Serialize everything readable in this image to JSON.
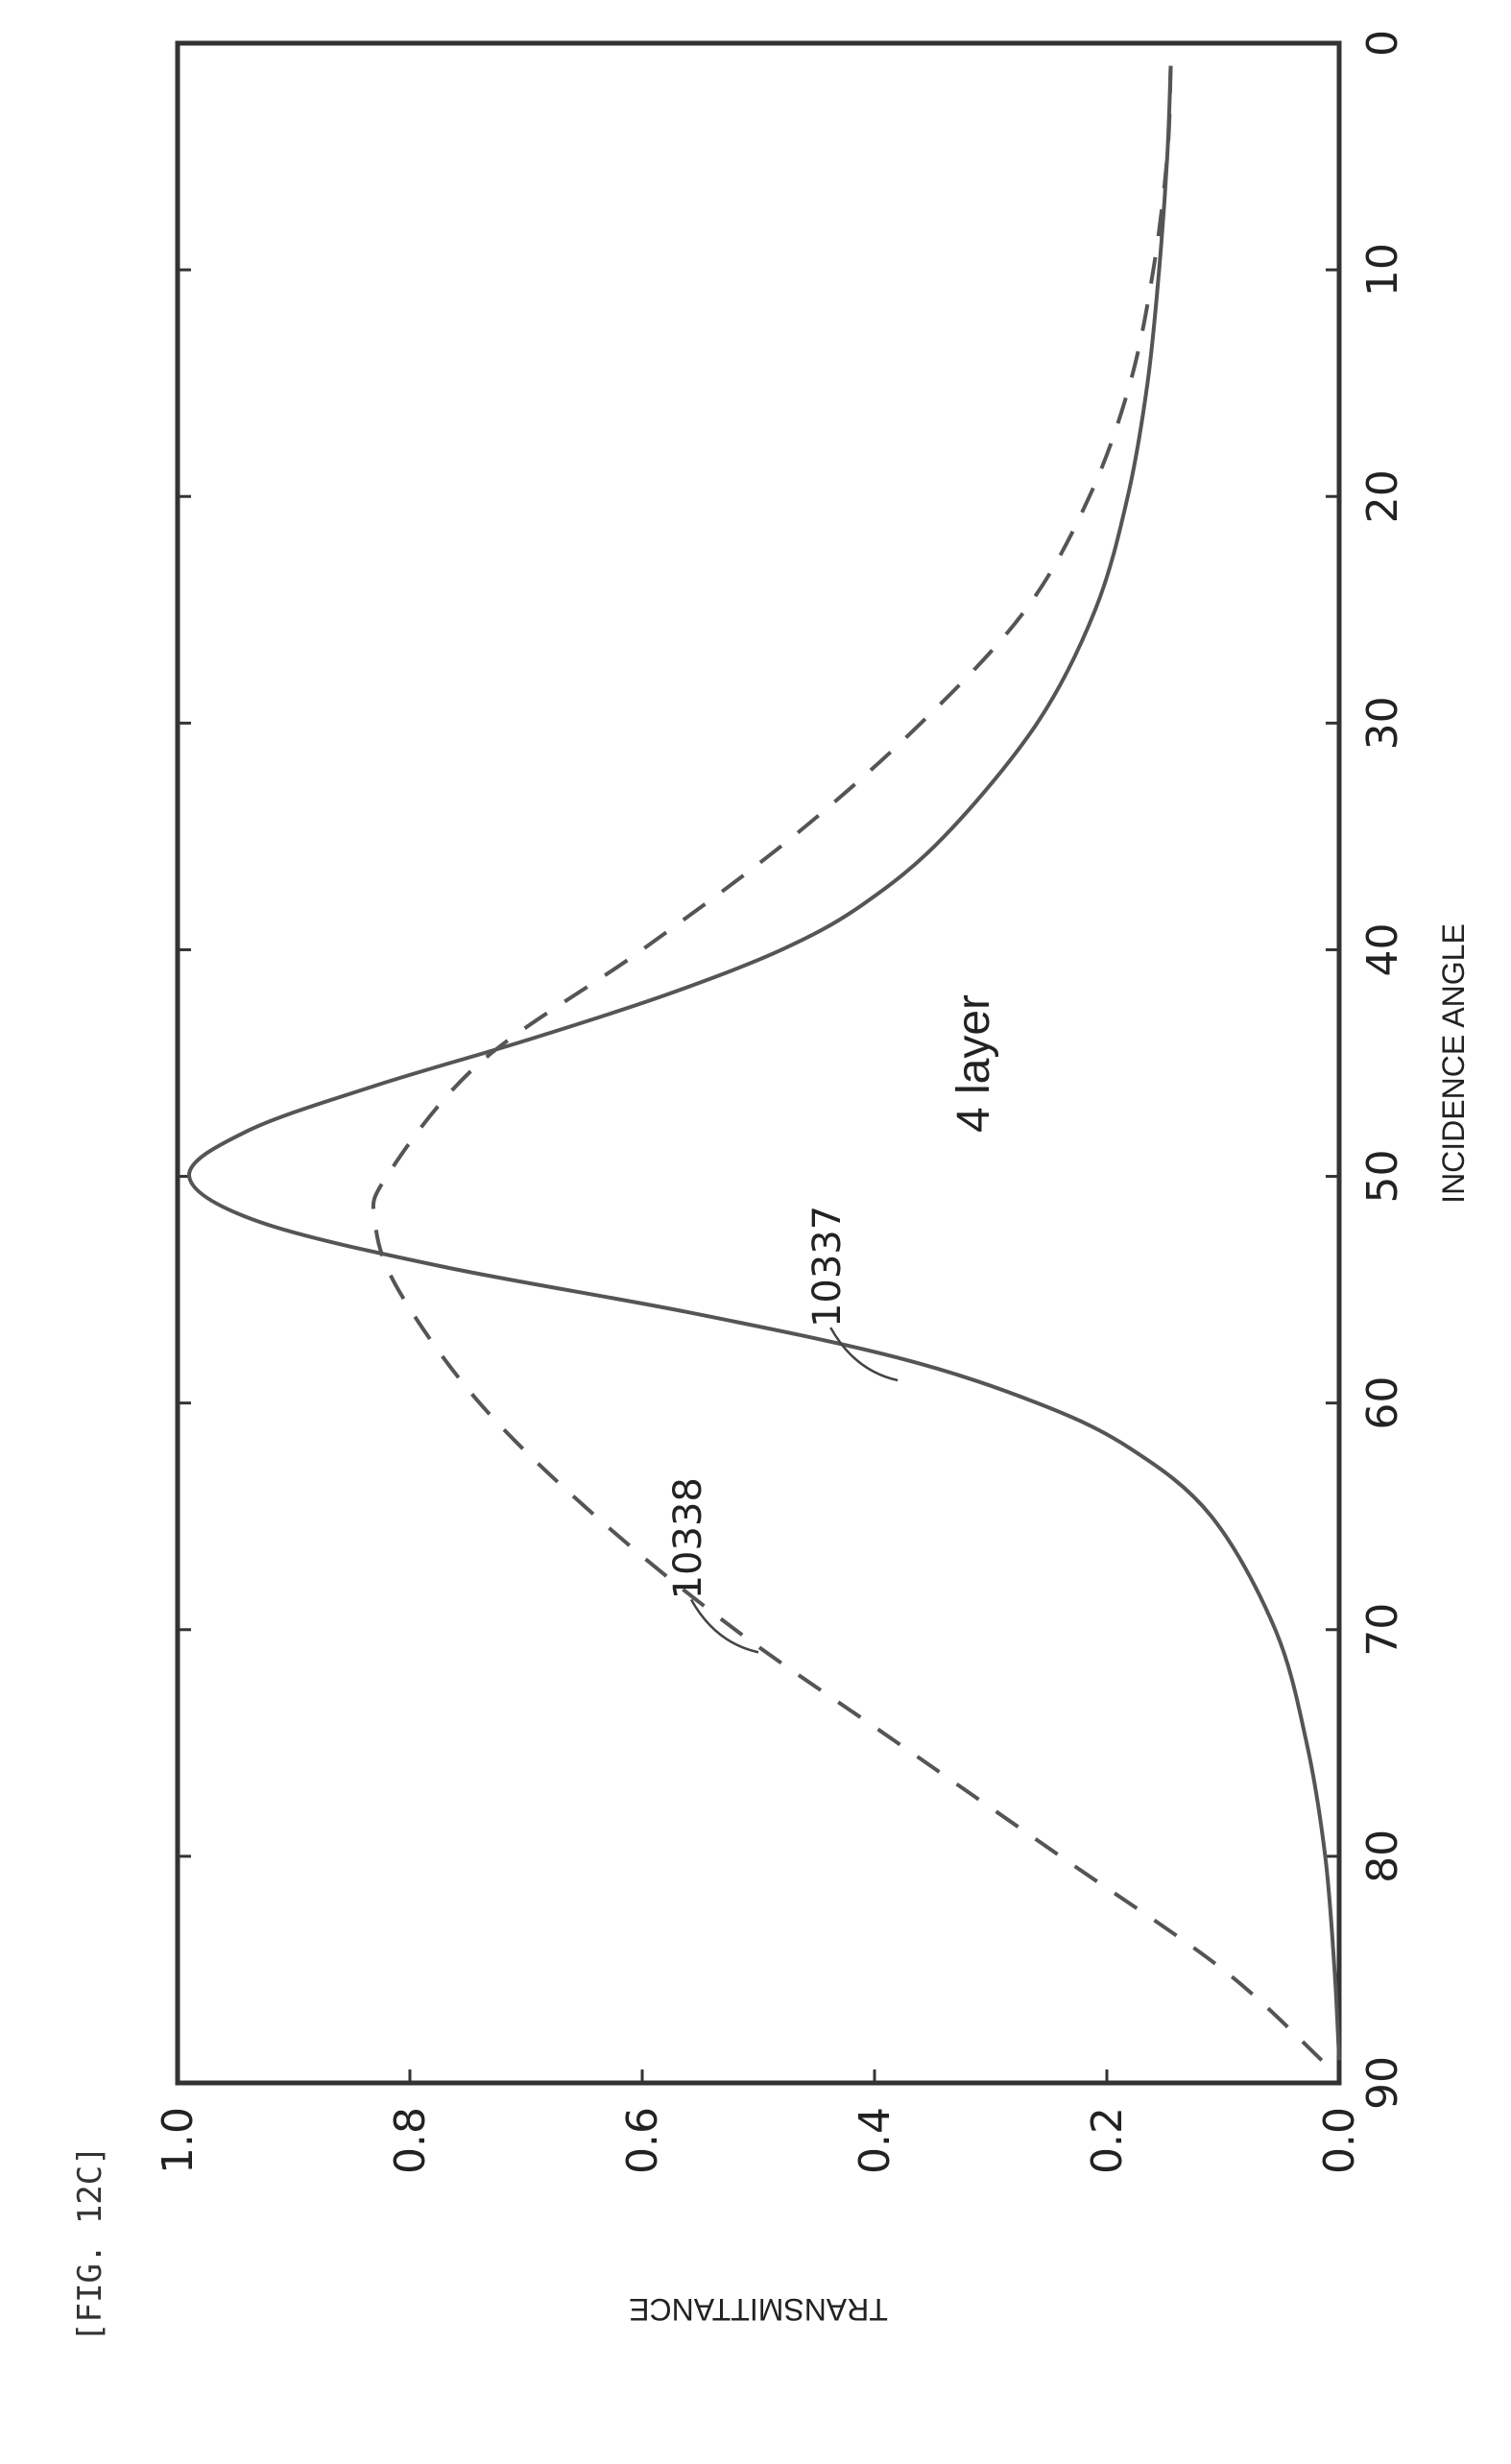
{
  "figure_label": "[FIG. 12C]",
  "chart_data": {
    "type": "line",
    "title": "4 layer",
    "xlabel": "INCIDENCE ANGLE",
    "ylabel": "TRANSMITTANCE",
    "xlim": [
      0,
      90
    ],
    "ylim": [
      0.0,
      1.0
    ],
    "x_ticks": [
      "0",
      "10",
      "20",
      "30",
      "40",
      "50",
      "60",
      "70",
      "80",
      "90"
    ],
    "y_ticks": [
      "0.0",
      "0.2",
      "0.4",
      "0.6",
      "0.8",
      "1.0"
    ],
    "grid": false,
    "series": [
      {
        "name": "10337",
        "style": "solid",
        "color": "#555555",
        "x": [
          1,
          5,
          10,
          15,
          20,
          25,
          30,
          35,
          38,
          40,
          42,
          44,
          46,
          48,
          50,
          52,
          54,
          56,
          58,
          60,
          62,
          65,
          70,
          75,
          80,
          85,
          89
        ],
        "y": [
          0.145,
          0.148,
          0.155,
          0.165,
          0.182,
          0.21,
          0.26,
          0.34,
          0.41,
          0.48,
          0.58,
          0.7,
          0.83,
          0.94,
          0.99,
          0.93,
          0.77,
          0.56,
          0.38,
          0.26,
          0.18,
          0.11,
          0.055,
          0.028,
          0.012,
          0.004,
          0.0
        ]
      },
      {
        "name": "10338",
        "style": "dashed",
        "color": "#555555",
        "x": [
          1,
          5,
          10,
          15,
          20,
          25,
          30,
          35,
          40,
          45,
          50,
          52,
          55,
          60,
          65,
          70,
          75,
          80,
          85,
          89
        ],
        "y": [
          0.145,
          0.148,
          0.16,
          0.18,
          0.215,
          0.27,
          0.36,
          0.47,
          0.6,
          0.74,
          0.82,
          0.83,
          0.81,
          0.74,
          0.64,
          0.52,
          0.38,
          0.24,
          0.1,
          0.015
        ]
      }
    ],
    "annotations": [
      {
        "text": "10337",
        "series": "10337",
        "x": 59,
        "y": 0.38
      },
      {
        "text": "10338",
        "series": "10338",
        "x": 71,
        "y": 0.5
      }
    ]
  }
}
